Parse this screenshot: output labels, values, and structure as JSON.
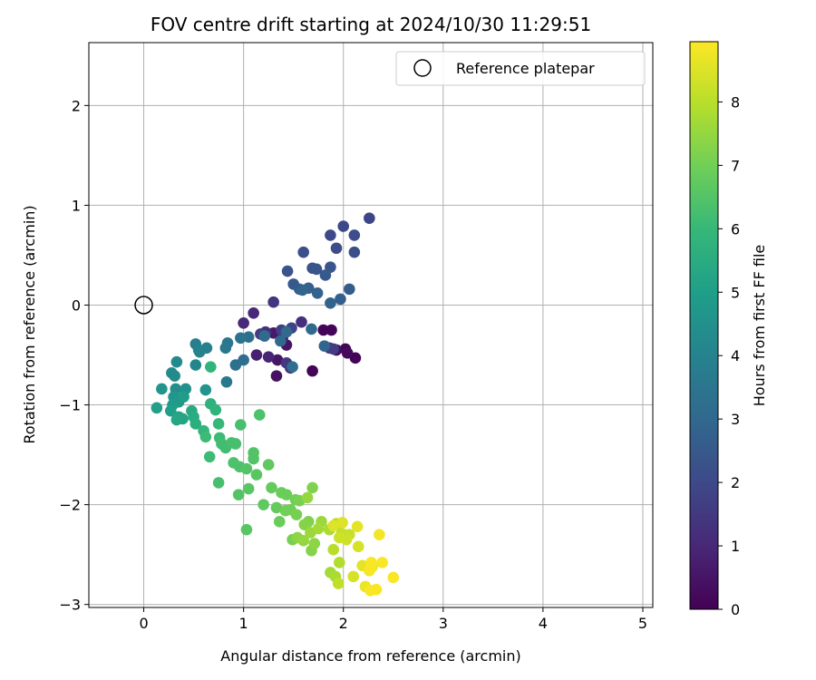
{
  "chart_data": {
    "type": "scatter",
    "title": "FOV centre drift starting at 2024/10/30 11:29:51",
    "xlabel": "Angular distance from reference (arcmin)",
    "ylabel": "Rotation from reference (arcmin)",
    "xlim": [
      -0.55,
      5.1
    ],
    "ylim": [
      -3.03,
      2.63
    ],
    "x_ticks": [
      0,
      1,
      2,
      3,
      4,
      5
    ],
    "y_ticks": [
      -3,
      -2,
      -1,
      0,
      1,
      2
    ],
    "grid": true,
    "legend": {
      "placement": "top-right",
      "entries": [
        "Reference platepar"
      ]
    },
    "reference_point": {
      "x": 0,
      "y": 0,
      "name": "Reference platepar"
    },
    "colorbar": {
      "label": "Hours from first FF file",
      "range": [
        0,
        8.95
      ],
      "ticks": [
        0,
        1,
        2,
        3,
        4,
        5,
        6,
        7,
        8
      ],
      "colormap": "viridis"
    },
    "points": [
      [
        1.69,
        -0.66,
        0.1
      ],
      [
        1.8,
        -0.25,
        0.1
      ],
      [
        1.88,
        -0.25,
        0.1
      ],
      [
        2.12,
        -0.53,
        0.1
      ],
      [
        2.02,
        -0.44,
        0.1
      ],
      [
        2.04,
        -0.48,
        0.2
      ],
      [
        1.93,
        -0.45,
        0.3
      ],
      [
        1.33,
        -0.71,
        0.4
      ],
      [
        1.34,
        -0.55,
        0.5
      ],
      [
        1.43,
        -0.4,
        0.5
      ],
      [
        1.3,
        -0.28,
        0.6
      ],
      [
        1.39,
        -0.33,
        0.7
      ],
      [
        1.13,
        -0.5,
        0.8
      ],
      [
        1.25,
        -0.52,
        0.9
      ],
      [
        1.1,
        -0.08,
        1.0
      ],
      [
        1.0,
        -0.18,
        1.0
      ],
      [
        1.47,
        -0.63,
        1.1
      ],
      [
        1.58,
        -0.17,
        1.2
      ],
      [
        1.22,
        -0.27,
        1.3
      ],
      [
        1.3,
        0.03,
        1.4
      ],
      [
        1.43,
        -0.58,
        1.5
      ],
      [
        1.86,
        -0.43,
        1.5
      ],
      [
        1.17,
        -0.29,
        1.6
      ],
      [
        1.9,
        -0.44,
        1.6
      ],
      [
        1.38,
        -0.25,
        1.7
      ],
      [
        1.48,
        -0.23,
        1.8
      ],
      [
        2.26,
        0.87,
        1.9
      ],
      [
        2.0,
        0.79,
        2.0
      ],
      [
        1.87,
        0.7,
        2.0
      ],
      [
        2.11,
        0.7,
        2.1
      ],
      [
        1.93,
        0.57,
        2.1
      ],
      [
        1.6,
        0.53,
        2.2
      ],
      [
        2.11,
        0.53,
        2.2
      ],
      [
        1.44,
        0.34,
        2.3
      ],
      [
        1.69,
        0.37,
        2.3
      ],
      [
        1.87,
        0.38,
        2.4
      ],
      [
        1.73,
        0.36,
        2.4
      ],
      [
        1.82,
        0.3,
        2.5
      ],
      [
        1.5,
        0.21,
        2.5
      ],
      [
        1.56,
        0.16,
        2.6
      ],
      [
        2.06,
        0.16,
        2.6
      ],
      [
        1.65,
        0.17,
        2.7
      ],
      [
        1.97,
        0.06,
        2.7
      ],
      [
        1.87,
        0.02,
        2.8
      ],
      [
        1.74,
        0.12,
        2.8
      ],
      [
        1.59,
        0.15,
        2.9
      ],
      [
        1.81,
        -0.41,
        2.9
      ],
      [
        1.68,
        -0.24,
        3.0
      ],
      [
        1.37,
        -0.36,
        3.0
      ],
      [
        1.43,
        -0.27,
        3.1
      ],
      [
        1.21,
        -0.31,
        3.1
      ],
      [
        1.49,
        -0.62,
        3.2
      ],
      [
        1.0,
        -0.55,
        3.2
      ],
      [
        0.92,
        -0.6,
        3.3
      ],
      [
        1.05,
        -0.32,
        3.3
      ],
      [
        0.97,
        -0.33,
        3.4
      ],
      [
        0.84,
        -0.38,
        3.5
      ],
      [
        0.82,
        -0.43,
        3.6
      ],
      [
        0.83,
        -0.77,
        3.6
      ],
      [
        0.52,
        -0.39,
        3.8
      ],
      [
        0.63,
        -0.43,
        3.9
      ],
      [
        0.55,
        -0.45,
        4.0
      ],
      [
        0.56,
        -0.47,
        4.0
      ],
      [
        0.52,
        -0.6,
        4.1
      ],
      [
        0.33,
        -0.57,
        4.2
      ],
      [
        0.28,
        -0.68,
        4.3
      ],
      [
        0.31,
        -0.71,
        4.3
      ],
      [
        0.32,
        -0.84,
        4.4
      ],
      [
        0.42,
        -0.84,
        4.5
      ],
      [
        0.62,
        -0.85,
        4.6
      ],
      [
        0.18,
        -0.84,
        4.6
      ],
      [
        0.3,
        -0.92,
        4.7
      ],
      [
        0.35,
        -0.97,
        4.8
      ],
      [
        0.4,
        -0.92,
        4.9
      ],
      [
        0.29,
        -1.0,
        4.9
      ],
      [
        0.13,
        -1.03,
        5.0
      ],
      [
        0.27,
        -1.06,
        5.0
      ],
      [
        0.35,
        -1.12,
        5.2
      ],
      [
        0.39,
        -1.14,
        5.2
      ],
      [
        0.33,
        -1.15,
        5.3
      ],
      [
        0.48,
        -1.06,
        5.4
      ],
      [
        0.5,
        -1.12,
        5.5
      ],
      [
        0.52,
        -1.19,
        5.6
      ],
      [
        0.67,
        -0.99,
        5.7
      ],
      [
        0.72,
        -1.05,
        5.8
      ],
      [
        0.6,
        -1.26,
        5.9
      ],
      [
        0.67,
        -0.62,
        5.8
      ],
      [
        0.75,
        -1.19,
        6.0
      ],
      [
        0.62,
        -1.32,
        6.1
      ],
      [
        0.76,
        -1.33,
        6.1
      ],
      [
        0.78,
        -1.39,
        6.2
      ],
      [
        0.66,
        -1.52,
        6.1
      ],
      [
        0.82,
        -1.43,
        6.2
      ],
      [
        0.88,
        -1.38,
        6.3
      ],
      [
        0.92,
        -1.39,
        6.3
      ],
      [
        0.75,
        -1.78,
        6.3
      ],
      [
        0.97,
        -1.2,
        6.3
      ],
      [
        1.16,
        -1.1,
        6.4
      ],
      [
        0.9,
        -1.58,
        6.4
      ],
      [
        0.96,
        -1.62,
        6.4
      ],
      [
        0.95,
        -1.9,
        6.5
      ],
      [
        1.03,
        -1.64,
        6.5
      ],
      [
        1.1,
        -1.54,
        6.5
      ],
      [
        1.1,
        -1.48,
        6.5
      ],
      [
        1.05,
        -1.84,
        6.6
      ],
      [
        1.13,
        -1.7,
        6.6
      ],
      [
        1.03,
        -2.25,
        6.6
      ],
      [
        1.25,
        -1.6,
        6.7
      ],
      [
        1.2,
        -2.0,
        6.7
      ],
      [
        1.28,
        -1.83,
        6.8
      ],
      [
        1.33,
        -2.03,
        6.8
      ],
      [
        1.38,
        -1.88,
        6.9
      ],
      [
        1.43,
        -1.9,
        6.9
      ],
      [
        1.36,
        -2.17,
        6.9
      ],
      [
        1.42,
        -2.06,
        7.0
      ],
      [
        1.47,
        -2.05,
        7.0
      ],
      [
        1.52,
        -1.95,
        7.0
      ],
      [
        1.53,
        -2.1,
        7.1
      ],
      [
        1.56,
        -1.96,
        7.1
      ],
      [
        1.49,
        -2.35,
        7.1
      ],
      [
        1.69,
        -1.83,
        7.2
      ],
      [
        1.65,
        -2.17,
        7.2
      ],
      [
        1.68,
        -2.46,
        7.3
      ],
      [
        1.61,
        -2.2,
        7.3
      ],
      [
        1.71,
        -2.39,
        7.4
      ],
      [
        1.54,
        -2.33,
        7.4
      ],
      [
        1.64,
        -1.93,
        7.5
      ],
      [
        1.6,
        -2.36,
        7.5
      ],
      [
        1.67,
        -2.28,
        7.6
      ],
      [
        1.78,
        -2.17,
        7.6
      ],
      [
        1.75,
        -2.24,
        7.7
      ],
      [
        1.87,
        -2.68,
        7.7
      ],
      [
        1.92,
        -2.72,
        7.8
      ],
      [
        1.86,
        -2.25,
        7.8
      ],
      [
        1.96,
        -2.58,
        7.9
      ],
      [
        1.9,
        -2.45,
        8.0
      ],
      [
        1.93,
        -2.19,
        8.0
      ],
      [
        1.98,
        -2.29,
        8.1
      ],
      [
        1.95,
        -2.79,
        8.1
      ],
      [
        2.01,
        -2.3,
        8.2
      ],
      [
        2.06,
        -2.3,
        8.2
      ],
      [
        2.03,
        -2.35,
        8.3
      ],
      [
        1.96,
        -2.33,
        8.3
      ],
      [
        2.1,
        -2.72,
        8.4
      ],
      [
        2.15,
        -2.42,
        8.4
      ],
      [
        1.9,
        -2.21,
        8.5
      ],
      [
        1.99,
        -2.18,
        8.5
      ],
      [
        2.14,
        -2.22,
        8.6
      ],
      [
        2.19,
        -2.61,
        8.6
      ],
      [
        2.22,
        -2.82,
        8.7
      ],
      [
        2.29,
        -2.62,
        8.7
      ],
      [
        2.26,
        -2.66,
        8.8
      ],
      [
        2.36,
        -2.3,
        8.8
      ],
      [
        2.27,
        -2.86,
        8.9
      ],
      [
        2.33,
        -2.85,
        8.9
      ],
      [
        2.39,
        -2.58,
        8.9
      ],
      [
        2.5,
        -2.73,
        8.9
      ],
      [
        2.28,
        -2.58,
        8.9
      ],
      [
        2.27,
        -2.64,
        8.9
      ]
    ]
  },
  "colors": {
    "viridis": [
      "#440154",
      "#482878",
      "#3e4989",
      "#31688e",
      "#26828e",
      "#1f9e89",
      "#35b779",
      "#6ece58",
      "#b5de2b",
      "#fde725"
    ]
  }
}
